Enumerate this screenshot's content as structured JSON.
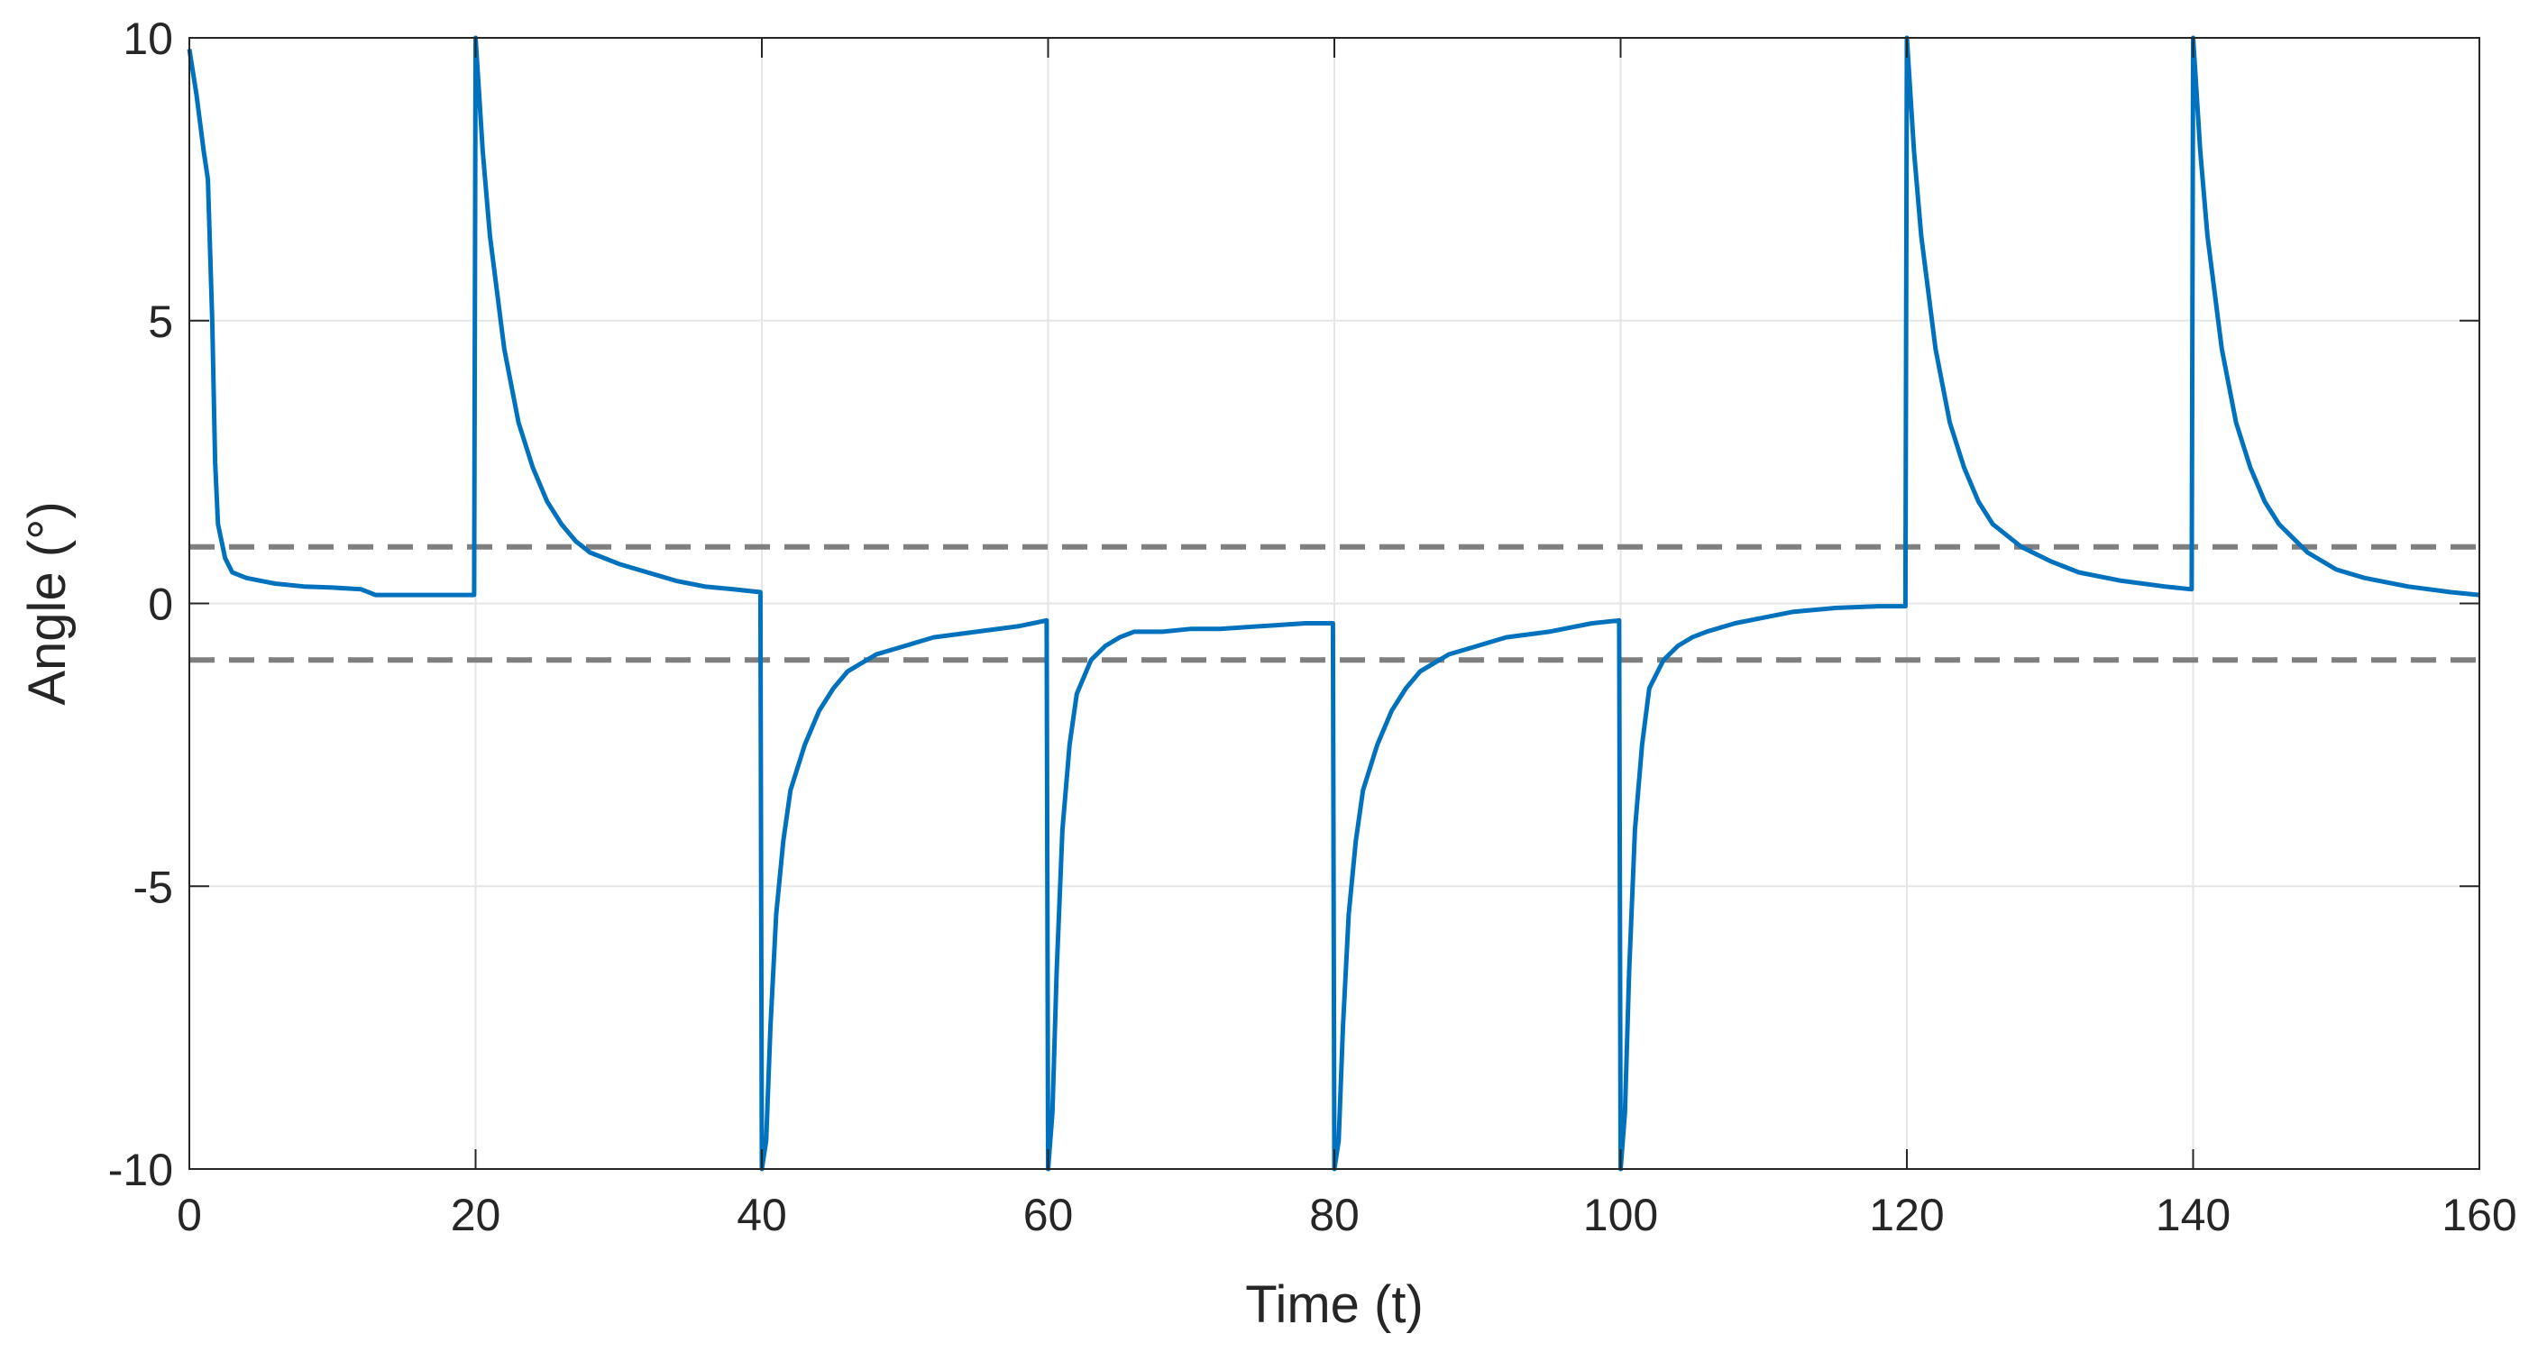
{
  "chart_data": {
    "type": "line",
    "title": "",
    "xlabel": "Time (t)",
    "ylabel": "Angle (°)",
    "xlim": [
      0,
      160
    ],
    "ylim": [
      -10,
      10
    ],
    "xticks": [
      0,
      20,
      40,
      60,
      80,
      100,
      120,
      140,
      160
    ],
    "yticks": [
      -10,
      -5,
      0,
      5,
      10
    ],
    "xtick_labels": [
      "0",
      "20",
      "40",
      "60",
      "80",
      "100",
      "120",
      "140",
      "160"
    ],
    "ytick_labels": [
      "-10",
      "-5",
      "0",
      "5",
      "10"
    ],
    "grid": true,
    "legend": "none",
    "colors": {
      "series": "#0072BD",
      "threshold": "#7f7f7f",
      "grid": "#e6e6e6",
      "axis": "#262626"
    },
    "series": [
      {
        "style": "solid",
        "x": [
          0,
          0.5,
          1.0,
          1.3,
          1.6,
          1.8,
          2.0,
          2.5,
          3.0,
          4.0,
          5.0,
          6.0,
          8.0,
          10.0,
          12.0,
          13.0,
          16.0,
          19.9,
          20.0,
          20.5,
          21.0,
          22.0,
          23.0,
          24.0,
          25.0,
          26.0,
          27.0,
          28.0,
          30.0,
          32.0,
          34.0,
          36.0,
          38.0,
          39.9,
          40.0,
          40.3,
          40.6,
          41.0,
          41.5,
          42.0,
          43.0,
          44.0,
          45.0,
          46.0,
          48.0,
          50.0,
          52.0,
          55.0,
          58.0,
          59.9,
          60.0,
          60.3,
          60.6,
          61.0,
          61.5,
          62.0,
          63.0,
          64.0,
          65.0,
          66.0,
          68.0,
          70.0,
          72.0,
          75.0,
          78.0,
          79.9,
          80.0,
          80.3,
          80.6,
          81.0,
          81.5,
          82.0,
          83.0,
          84.0,
          85.0,
          86.0,
          88.0,
          90.0,
          92.0,
          95.0,
          98.0,
          99.9,
          100.0,
          100.3,
          100.6,
          101.0,
          101.5,
          102.0,
          103.0,
          104.0,
          105.0,
          106.0,
          108.0,
          110.0,
          112.0,
          115.0,
          118.0,
          119.9,
          120.0,
          120.5,
          121.0,
          122.0,
          123.0,
          124.0,
          125.0,
          126.0,
          128.0,
          130.0,
          132.0,
          135.0,
          138.0,
          139.9,
          140.0,
          140.5,
          141.0,
          142.0,
          143.0,
          144.0,
          145.0,
          146.0,
          148.0,
          150.0,
          152.0,
          155.0,
          158.0,
          160.0
        ],
        "y": [
          9.8,
          9.0,
          8.0,
          7.5,
          5.0,
          2.5,
          1.4,
          0.8,
          0.55,
          0.45,
          0.4,
          0.35,
          0.3,
          0.28,
          0.25,
          0.15,
          0.15,
          0.15,
          10.0,
          8.0,
          6.5,
          4.5,
          3.2,
          2.4,
          1.8,
          1.4,
          1.1,
          0.9,
          0.7,
          0.55,
          0.4,
          0.3,
          0.25,
          0.2,
          -10.0,
          -9.5,
          -7.5,
          -5.5,
          -4.2,
          -3.3,
          -2.5,
          -1.9,
          -1.5,
          -1.2,
          -0.9,
          -0.75,
          -0.6,
          -0.5,
          -0.4,
          -0.3,
          -10.0,
          -9.0,
          -6.5,
          -4.0,
          -2.5,
          -1.6,
          -1.0,
          -0.75,
          -0.6,
          -0.5,
          -0.5,
          -0.45,
          -0.45,
          -0.4,
          -0.35,
          -0.35,
          -10.0,
          -9.5,
          -7.5,
          -5.5,
          -4.2,
          -3.3,
          -2.5,
          -1.9,
          -1.5,
          -1.2,
          -0.9,
          -0.75,
          -0.6,
          -0.5,
          -0.35,
          -0.3,
          -10.0,
          -9.0,
          -6.5,
          -4.0,
          -2.5,
          -1.5,
          -1.0,
          -0.75,
          -0.6,
          -0.5,
          -0.35,
          -0.25,
          -0.15,
          -0.08,
          -0.05,
          -0.05,
          10.0,
          8.0,
          6.5,
          4.5,
          3.2,
          2.4,
          1.8,
          1.4,
          1.0,
          0.75,
          0.55,
          0.4,
          0.3,
          0.25,
          10.0,
          8.0,
          6.5,
          4.5,
          3.2,
          2.4,
          1.8,
          1.4,
          0.9,
          0.6,
          0.45,
          0.3,
          0.2,
          0.15
        ]
      },
      {
        "style": "dashed",
        "x": [
          0,
          160
        ],
        "y": [
          1,
          1
        ]
      },
      {
        "style": "dashed",
        "x": [
          0,
          160
        ],
        "y": [
          -1,
          -1
        ]
      }
    ]
  }
}
